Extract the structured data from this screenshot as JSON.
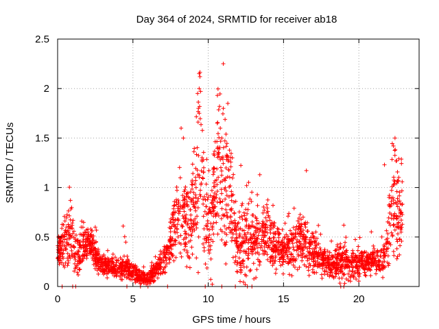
{
  "chart_data": {
    "type": "scatter",
    "title": "Day 364 of 2024, SRMTID for receiver ab18",
    "xlabel": "GPS time / hours",
    "ylabel": "SRMTID / TECUs",
    "xlim": [
      0,
      24
    ],
    "ylim": [
      0,
      2.5
    ],
    "x_ticks": [
      0,
      5,
      10,
      15,
      20
    ],
    "x_tick_labels": [
      "0",
      "5",
      "10",
      "15",
      "20"
    ],
    "y_ticks": [
      0,
      0.5,
      1,
      1.5,
      2,
      2.5
    ],
    "y_tick_labels": [
      "0",
      "0.5",
      "1",
      "1.5",
      "2",
      "2.5"
    ],
    "grid": true,
    "marker": "+",
    "series": [
      {
        "name": "SRMTID",
        "color": "#ff0000",
        "envelope": [
          [
            0.0,
            0.4,
            0.06
          ],
          [
            0.3,
            0.35,
            0.1
          ],
          [
            0.6,
            0.5,
            0.12
          ],
          [
            0.9,
            0.55,
            0.18
          ],
          [
            1.2,
            0.28,
            0.1
          ],
          [
            1.6,
            0.4,
            0.1
          ],
          [
            2.0,
            0.45,
            0.08
          ],
          [
            2.4,
            0.35,
            0.08
          ],
          [
            2.8,
            0.25,
            0.06
          ],
          [
            3.2,
            0.22,
            0.05
          ],
          [
            3.6,
            0.2,
            0.05
          ],
          [
            4.0,
            0.18,
            0.05
          ],
          [
            4.4,
            0.2,
            0.06
          ],
          [
            4.8,
            0.17,
            0.05
          ],
          [
            5.2,
            0.12,
            0.04
          ],
          [
            5.6,
            0.09,
            0.03
          ],
          [
            6.0,
            0.08,
            0.03
          ],
          [
            6.4,
            0.15,
            0.05
          ],
          [
            6.8,
            0.22,
            0.06
          ],
          [
            7.2,
            0.3,
            0.08
          ],
          [
            7.6,
            0.5,
            0.12
          ],
          [
            8.0,
            0.75,
            0.2
          ],
          [
            8.4,
            0.7,
            0.2
          ],
          [
            8.8,
            0.6,
            0.2
          ],
          [
            9.2,
            1.0,
            0.35
          ],
          [
            9.5,
            1.3,
            0.4
          ],
          [
            9.8,
            0.7,
            0.25
          ],
          [
            10.2,
            0.6,
            0.25
          ],
          [
            10.6,
            1.2,
            0.35
          ],
          [
            11.0,
            1.1,
            0.35
          ],
          [
            11.4,
            0.9,
            0.3
          ],
          [
            11.8,
            0.45,
            0.2
          ],
          [
            12.2,
            0.4,
            0.2
          ],
          [
            12.6,
            0.5,
            0.18
          ],
          [
            13.0,
            0.45,
            0.15
          ],
          [
            13.4,
            0.5,
            0.15
          ],
          [
            13.8,
            0.55,
            0.15
          ],
          [
            14.2,
            0.5,
            0.15
          ],
          [
            14.6,
            0.4,
            0.12
          ],
          [
            15.0,
            0.35,
            0.1
          ],
          [
            15.4,
            0.38,
            0.12
          ],
          [
            15.8,
            0.45,
            0.15
          ],
          [
            16.2,
            0.5,
            0.15
          ],
          [
            16.6,
            0.4,
            0.12
          ],
          [
            17.0,
            0.35,
            0.1
          ],
          [
            17.4,
            0.28,
            0.08
          ],
          [
            17.8,
            0.25,
            0.08
          ],
          [
            18.2,
            0.2,
            0.07
          ],
          [
            18.6,
            0.25,
            0.08
          ],
          [
            19.0,
            0.3,
            0.1
          ],
          [
            19.4,
            0.22,
            0.07
          ],
          [
            19.8,
            0.22,
            0.07
          ],
          [
            20.2,
            0.24,
            0.07
          ],
          [
            20.6,
            0.25,
            0.07
          ],
          [
            21.0,
            0.28,
            0.07
          ],
          [
            21.4,
            0.22,
            0.06
          ],
          [
            21.8,
            0.3,
            0.1
          ],
          [
            22.0,
            0.7,
            0.25
          ],
          [
            22.3,
            0.85,
            0.3
          ],
          [
            22.6,
            0.75,
            0.25
          ],
          [
            22.8,
            0.7,
            0.2
          ]
        ],
        "peaks": [
          [
            9.4,
            2.15
          ],
          [
            9.45,
            2.12
          ],
          [
            9.4,
            2.0
          ],
          [
            9.35,
            1.8
          ],
          [
            9.4,
            1.75
          ],
          [
            10.75,
            1.82
          ],
          [
            11.0,
            1.8
          ],
          [
            11.3,
            1.85
          ],
          [
            10.6,
            1.65
          ],
          [
            10.8,
            1.6
          ],
          [
            8.2,
            1.6
          ],
          [
            8.35,
            1.5
          ],
          [
            22.4,
            1.5
          ],
          [
            22.3,
            1.42
          ],
          [
            22.5,
            1.27
          ],
          [
            21.7,
            1.23
          ],
          [
            12.55,
            1.02
          ],
          [
            0.85,
            0.87
          ],
          [
            15.7,
            0.79
          ],
          [
            19.0,
            0.62
          ],
          [
            4.35,
            0.61
          ],
          [
            8.0,
            0.5
          ],
          [
            11.95,
            0.4
          ],
          [
            9.7,
            1.2
          ],
          [
            11.6,
            1.3
          ],
          [
            14.3,
            0.82
          ],
          [
            13.1,
            0.6
          ],
          [
            16.3,
            0.7
          ],
          [
            2.5,
            0.6
          ],
          [
            1.6,
            0.66
          ]
        ],
        "zero_points": [
          0.3,
          1.0,
          1.2,
          4.6,
          5.5,
          6.0,
          7.3,
          9.8,
          10.9,
          11.8,
          12.6,
          12.9,
          18.8,
          19.0
        ],
        "samples": 2600,
        "x_range": [
          0,
          22.9
        ]
      }
    ]
  }
}
